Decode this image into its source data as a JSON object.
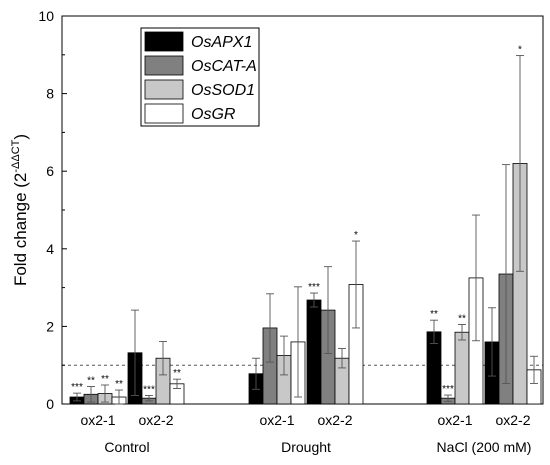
{
  "chart_data": {
    "type": "bar",
    "ylabel_main": "Fold change (2",
    "ylabel_exp": "-ΔΔCT",
    "ylabel_close": ")",
    "ylim": [
      0,
      10
    ],
    "yticks": [
      0,
      2,
      4,
      6,
      8,
      10
    ],
    "reference_line": 1,
    "legend_position": "top-left",
    "series": [
      {
        "name": "OsAPX1",
        "color": "#000000"
      },
      {
        "name": "OsCAT-A",
        "color": "#808080"
      },
      {
        "name": "OsSOD1",
        "color": "#c8c8c8"
      },
      {
        "name": "OsGR",
        "color": "#ffffff"
      }
    ],
    "groups": [
      {
        "label": "Control",
        "subgroups": [
          {
            "label": "ox2-1",
            "values": [
              0.18,
              0.25,
              0.27,
              0.18
            ],
            "errors": [
              0.1,
              0.2,
              0.22,
              0.18
            ],
            "sig": [
              "***",
              "**",
              "**",
              "**"
            ]
          },
          {
            "label": "ox2-2",
            "values": [
              1.32,
              0.15,
              1.18,
              0.52
            ],
            "errors": [
              1.1,
              0.07,
              0.43,
              0.12
            ],
            "sig": [
              "",
              "***",
              "",
              "**"
            ]
          }
        ]
      },
      {
        "label": "Drought",
        "subgroups": [
          {
            "label": "ox2-1",
            "values": [
              0.78,
              1.96,
              1.25,
              1.6
            ],
            "errors": [
              0.4,
              0.88,
              0.5,
              1.42
            ],
            "sig": [
              "",
              "",
              "",
              ""
            ]
          },
          {
            "label": "ox2-2",
            "values": [
              2.68,
              2.42,
              1.18,
              3.08
            ],
            "errors": [
              0.18,
              1.12,
              0.25,
              1.12
            ],
            "sig": [
              "***",
              "",
              "",
              "*"
            ]
          }
        ]
      },
      {
        "label": "NaCl (200 mM)",
        "subgroups": [
          {
            "label": "ox2-1",
            "values": [
              1.86,
              0.15,
              1.85,
              3.25
            ],
            "errors": [
              0.3,
              0.08,
              0.2,
              1.62
            ],
            "sig": [
              "**",
              "***",
              "**",
              ""
            ]
          },
          {
            "label": "ox2-2",
            "values": [
              1.6,
              3.35,
              6.2,
              0.88
            ],
            "errors": [
              0.88,
              2.82,
              2.78,
              0.35
            ],
            "sig": [
              "",
              "",
              "*",
              ""
            ]
          }
        ]
      }
    ]
  }
}
